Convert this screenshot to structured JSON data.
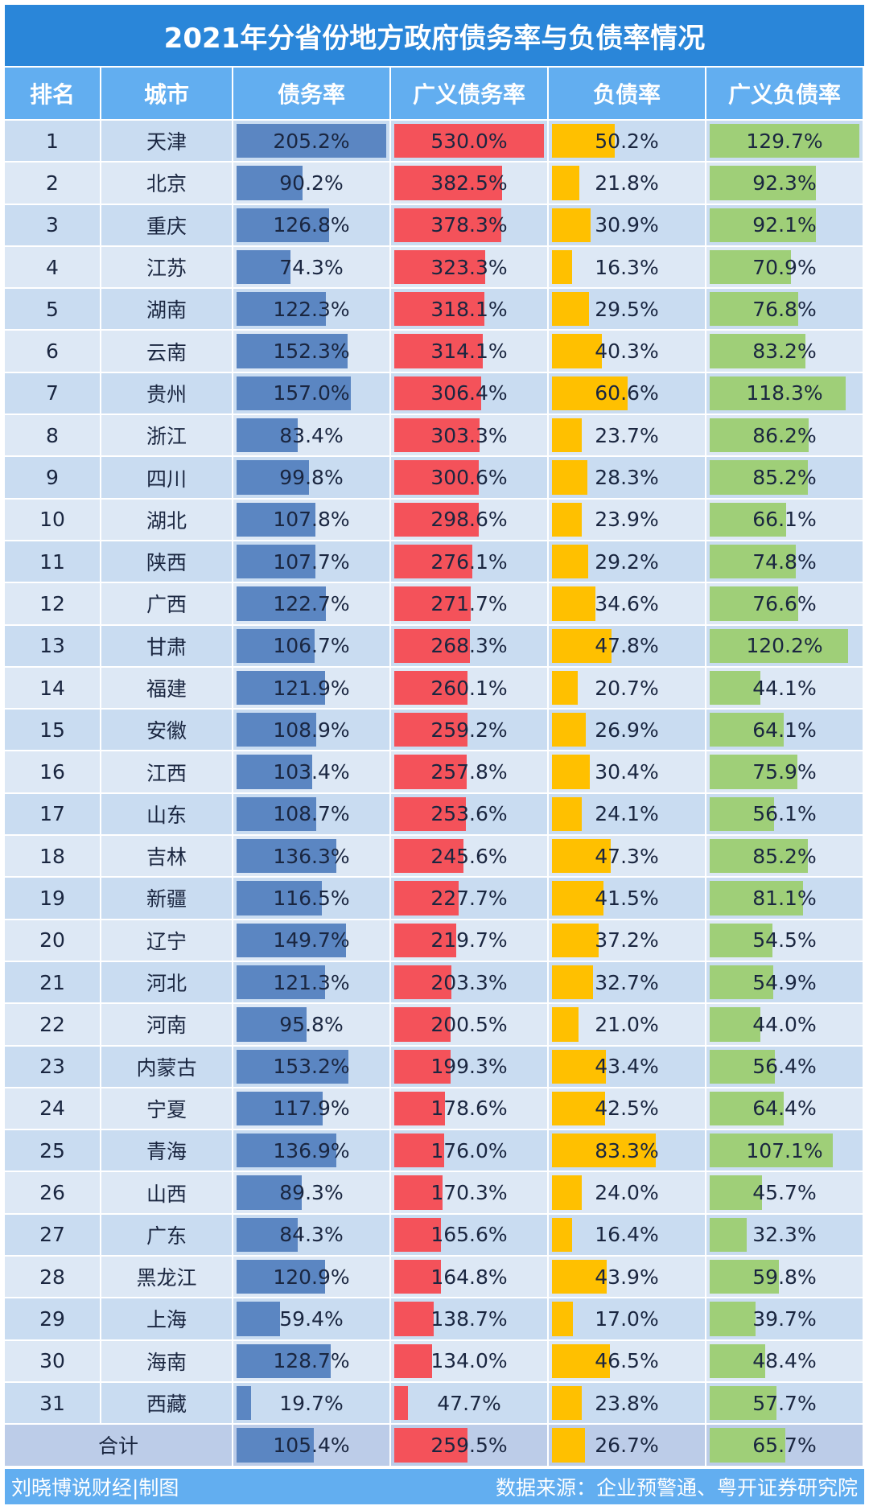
{
  "title": "2021年分省份地方政府债务率与负债率情况",
  "chart_data": {
    "type": "table",
    "headers": [
      "排名",
      "城市",
      "债务率",
      "广义债务率",
      "负债率",
      "广义负债率"
    ],
    "bar_colors": [
      "#5b86c2",
      "#f4525a",
      "#ffc000",
      "#9fcf78"
    ],
    "bar_scale_max": [
      205.2,
      530.0,
      120,
      130
    ],
    "rows": [
      [
        "1",
        "天津",
        205.2,
        530.0,
        50.2,
        129.7
      ],
      [
        "2",
        "北京",
        90.2,
        382.5,
        21.8,
        92.3
      ],
      [
        "3",
        "重庆",
        126.8,
        378.3,
        30.9,
        92.1
      ],
      [
        "4",
        "江苏",
        74.3,
        323.3,
        16.3,
        70.9
      ],
      [
        "5",
        "湖南",
        122.3,
        318.1,
        29.5,
        76.8
      ],
      [
        "6",
        "云南",
        152.3,
        314.1,
        40.3,
        83.2
      ],
      [
        "7",
        "贵州",
        157.0,
        306.4,
        60.6,
        118.3
      ],
      [
        "8",
        "浙江",
        83.4,
        303.3,
        23.7,
        86.2
      ],
      [
        "9",
        "四川",
        99.8,
        300.6,
        28.3,
        85.2
      ],
      [
        "10",
        "湖北",
        107.8,
        298.6,
        23.9,
        66.1
      ],
      [
        "11",
        "陕西",
        107.7,
        276.1,
        29.2,
        74.8
      ],
      [
        "12",
        "广西",
        122.7,
        271.7,
        34.6,
        76.6
      ],
      [
        "13",
        "甘肃",
        106.7,
        268.3,
        47.8,
        120.2
      ],
      [
        "14",
        "福建",
        121.9,
        260.1,
        20.7,
        44.1
      ],
      [
        "15",
        "安徽",
        108.9,
        259.2,
        26.9,
        64.1
      ],
      [
        "16",
        "江西",
        103.4,
        257.8,
        30.4,
        75.9
      ],
      [
        "17",
        "山东",
        108.7,
        253.6,
        24.1,
        56.1
      ],
      [
        "18",
        "吉林",
        136.3,
        245.6,
        47.3,
        85.2
      ],
      [
        "19",
        "新疆",
        116.5,
        227.7,
        41.5,
        81.1
      ],
      [
        "20",
        "辽宁",
        149.7,
        219.7,
        37.2,
        54.5
      ],
      [
        "21",
        "河北",
        121.3,
        203.3,
        32.7,
        54.9
      ],
      [
        "22",
        "河南",
        95.8,
        200.5,
        21.0,
        44.0
      ],
      [
        "23",
        "内蒙古",
        153.2,
        199.3,
        43.4,
        56.4
      ],
      [
        "24",
        "宁夏",
        117.9,
        178.6,
        42.5,
        64.4
      ],
      [
        "25",
        "青海",
        136.9,
        176.0,
        83.3,
        107.1
      ],
      [
        "26",
        "山西",
        89.3,
        170.3,
        24.0,
        45.7
      ],
      [
        "27",
        "广东",
        84.3,
        165.6,
        16.4,
        32.3
      ],
      [
        "28",
        "黑龙江",
        120.9,
        164.8,
        43.9,
        59.8
      ],
      [
        "29",
        "上海",
        59.4,
        138.7,
        17.0,
        39.7
      ],
      [
        "30",
        "海南",
        128.7,
        134.0,
        46.5,
        48.4
      ],
      [
        "31",
        "西藏",
        19.7,
        47.7,
        23.8,
        57.7
      ]
    ],
    "total": {
      "label": "合计",
      "values": [
        105.4,
        259.5,
        26.7,
        65.7
      ]
    }
  },
  "footer": {
    "left": "刘晓博说财经|制图",
    "right": "数据来源：企业预警通、粤开证券研究院"
  }
}
